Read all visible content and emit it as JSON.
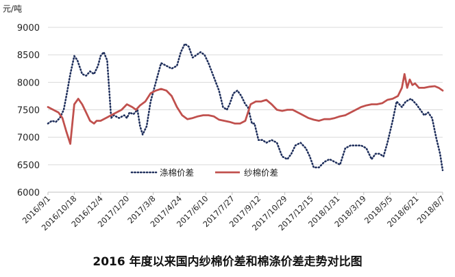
{
  "caption": "2016 年度以来国内纱棉价差和棉涤价差走势对比图",
  "chart_data": {
    "type": "line",
    "title": "2016 年度以来国内纱棉价差和棉涤价差走势对比图",
    "ylabel": "元/吨",
    "xlabel": "",
    "ylim": [
      6000,
      9000
    ],
    "yticks": [
      6000,
      6500,
      7000,
      7500,
      8000,
      8500,
      9000
    ],
    "grid": "horizontal",
    "legend": "lower-middle",
    "x_tick_labels": [
      "2016/9/1",
      "2016/10/18",
      "2016/12/4",
      "2017/1/20",
      "2017/3/8",
      "2017/4/24",
      "2017/6/10",
      "2017/7/27",
      "2017/9/12",
      "2017/10/29",
      "2017/12/15",
      "2018/1/31",
      "2018/3/19",
      "2018/5/5",
      "2018/6/21",
      "2018/8/7"
    ],
    "x_index_range": [
      0,
      15
    ],
    "series": [
      {
        "name": "涤棉价差",
        "color": "#1f2f5c",
        "style": "dotted",
        "x": [
          0,
          0.15,
          0.3,
          0.45,
          0.6,
          0.72,
          0.85,
          1.0,
          1.12,
          1.3,
          1.45,
          1.6,
          1.75,
          1.9,
          2.0,
          2.12,
          2.25,
          2.4,
          2.5,
          2.7,
          2.9,
          3.0,
          3.1,
          3.25,
          3.4,
          3.5,
          3.6,
          3.75,
          3.9,
          4.1,
          4.3,
          4.5,
          4.7,
          4.9,
          5.05,
          5.2,
          5.35,
          5.5,
          5.65,
          5.8,
          5.95,
          6.1,
          6.3,
          6.5,
          6.65,
          6.8,
          6.9,
          7.05,
          7.2,
          7.35,
          7.5,
          7.6,
          7.75,
          7.85,
          8.0,
          8.15,
          8.3,
          8.5,
          8.7,
          8.9,
          9.1,
          9.25,
          9.4,
          9.6,
          9.8,
          9.95,
          10.1,
          10.3,
          10.5,
          10.7,
          10.9,
          11.1,
          11.3,
          11.5,
          11.7,
          11.9,
          12.1,
          12.3,
          12.45,
          12.6,
          12.75,
          12.9,
          13.1,
          13.25,
          13.45,
          13.6,
          13.8,
          14.0,
          14.15,
          14.3,
          14.45,
          14.6,
          14.75,
          14.9,
          15.0
        ],
        "values": [
          7250,
          7300,
          7280,
          7350,
          7500,
          7800,
          8150,
          8480,
          8400,
          8150,
          8120,
          8200,
          8150,
          8300,
          8480,
          8550,
          8400,
          7350,
          7400,
          7350,
          7400,
          7350,
          7450,
          7420,
          7500,
          7200,
          7050,
          7200,
          7650,
          8000,
          8350,
          8300,
          8250,
          8300,
          8550,
          8700,
          8650,
          8450,
          8500,
          8550,
          8500,
          8350,
          8100,
          7850,
          7550,
          7500,
          7600,
          7800,
          7850,
          7750,
          7600,
          7550,
          7250,
          7250,
          6950,
          6950,
          6900,
          6950,
          6900,
          6650,
          6600,
          6700,
          6850,
          6900,
          6800,
          6650,
          6450,
          6450,
          6550,
          6600,
          6550,
          6500,
          6800,
          6850,
          6850,
          6850,
          6800,
          6600,
          6700,
          6700,
          6650,
          6900,
          7300,
          7650,
          7550,
          7650,
          7700,
          7600,
          7500,
          7400,
          7450,
          7350,
          7000,
          6700,
          6400
        ]
      },
      {
        "name": "纱棉价差",
        "color": "#c0504d",
        "style": "solid",
        "x": [
          0,
          0.2,
          0.4,
          0.55,
          0.7,
          0.85,
          1.0,
          1.15,
          1.3,
          1.45,
          1.6,
          1.75,
          1.85,
          2.0,
          2.2,
          2.4,
          2.6,
          2.8,
          3.0,
          3.2,
          3.35,
          3.5,
          3.7,
          3.9,
          4.1,
          4.3,
          4.5,
          4.7,
          4.9,
          5.1,
          5.3,
          5.5,
          5.7,
          5.9,
          6.1,
          6.3,
          6.5,
          6.7,
          6.9,
          7.1,
          7.3,
          7.5,
          7.7,
          7.9,
          8.1,
          8.3,
          8.5,
          8.7,
          8.9,
          9.1,
          9.3,
          9.5,
          9.7,
          9.9,
          10.1,
          10.3,
          10.5,
          10.7,
          10.9,
          11.1,
          11.3,
          11.5,
          11.7,
          11.9,
          12.1,
          12.3,
          12.5,
          12.7,
          12.9,
          13.1,
          13.3,
          13.45,
          13.55,
          13.65,
          13.75,
          13.85,
          13.95,
          14.1,
          14.3,
          14.5,
          14.7,
          14.85,
          15.0
        ],
        "values": [
          7550,
          7500,
          7450,
          7350,
          7100,
          6880,
          7600,
          7700,
          7600,
          7450,
          7300,
          7250,
          7300,
          7300,
          7350,
          7400,
          7450,
          7500,
          7600,
          7550,
          7500,
          7580,
          7650,
          7800,
          7850,
          7880,
          7850,
          7750,
          7550,
          7400,
          7330,
          7350,
          7380,
          7400,
          7400,
          7380,
          7320,
          7300,
          7280,
          7250,
          7250,
          7300,
          7600,
          7650,
          7650,
          7680,
          7600,
          7500,
          7480,
          7500,
          7500,
          7450,
          7400,
          7350,
          7320,
          7300,
          7330,
          7330,
          7350,
          7380,
          7400,
          7450,
          7500,
          7550,
          7580,
          7600,
          7600,
          7620,
          7680,
          7700,
          7750,
          7900,
          8150,
          7900,
          8050,
          7950,
          7980,
          7900,
          7900,
          7920,
          7930,
          7900,
          7850
        ]
      }
    ]
  }
}
